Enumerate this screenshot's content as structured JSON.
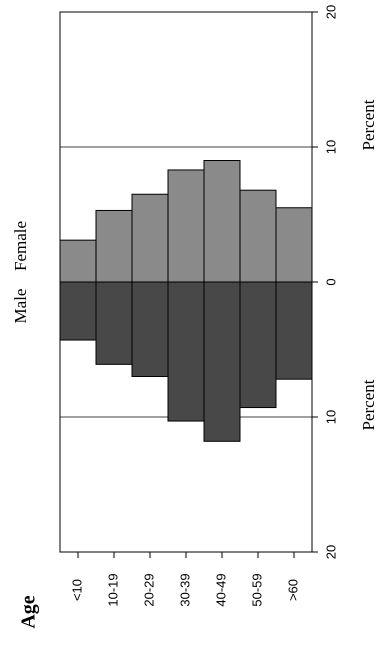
{
  "chart_data": {
    "type": "pyramid",
    "axis_label_left": "Percent",
    "axis_label_right": "Percent",
    "category_title": "Age",
    "categories": [
      "<10",
      "10-19",
      "20-29",
      "30-39",
      "40-49",
      "50-59",
      ">60"
    ],
    "series": [
      {
        "name": "Female",
        "color": "#8a8a8a",
        "values": [
          3.1,
          5.3,
          6.5,
          8.3,
          9.0,
          6.8,
          5.5
        ]
      },
      {
        "name": "Male",
        "color": "#484848",
        "values": [
          -4.3,
          -6.1,
          -7.0,
          -10.3,
          -11.8,
          -9.3,
          -7.2
        ]
      }
    ],
    "ylim": [
      -20,
      20
    ],
    "yticks": [
      {
        "value": -20,
        "label": "20"
      },
      {
        "value": -10,
        "label": "10"
      },
      0,
      10,
      20
    ],
    "grid": true
  }
}
